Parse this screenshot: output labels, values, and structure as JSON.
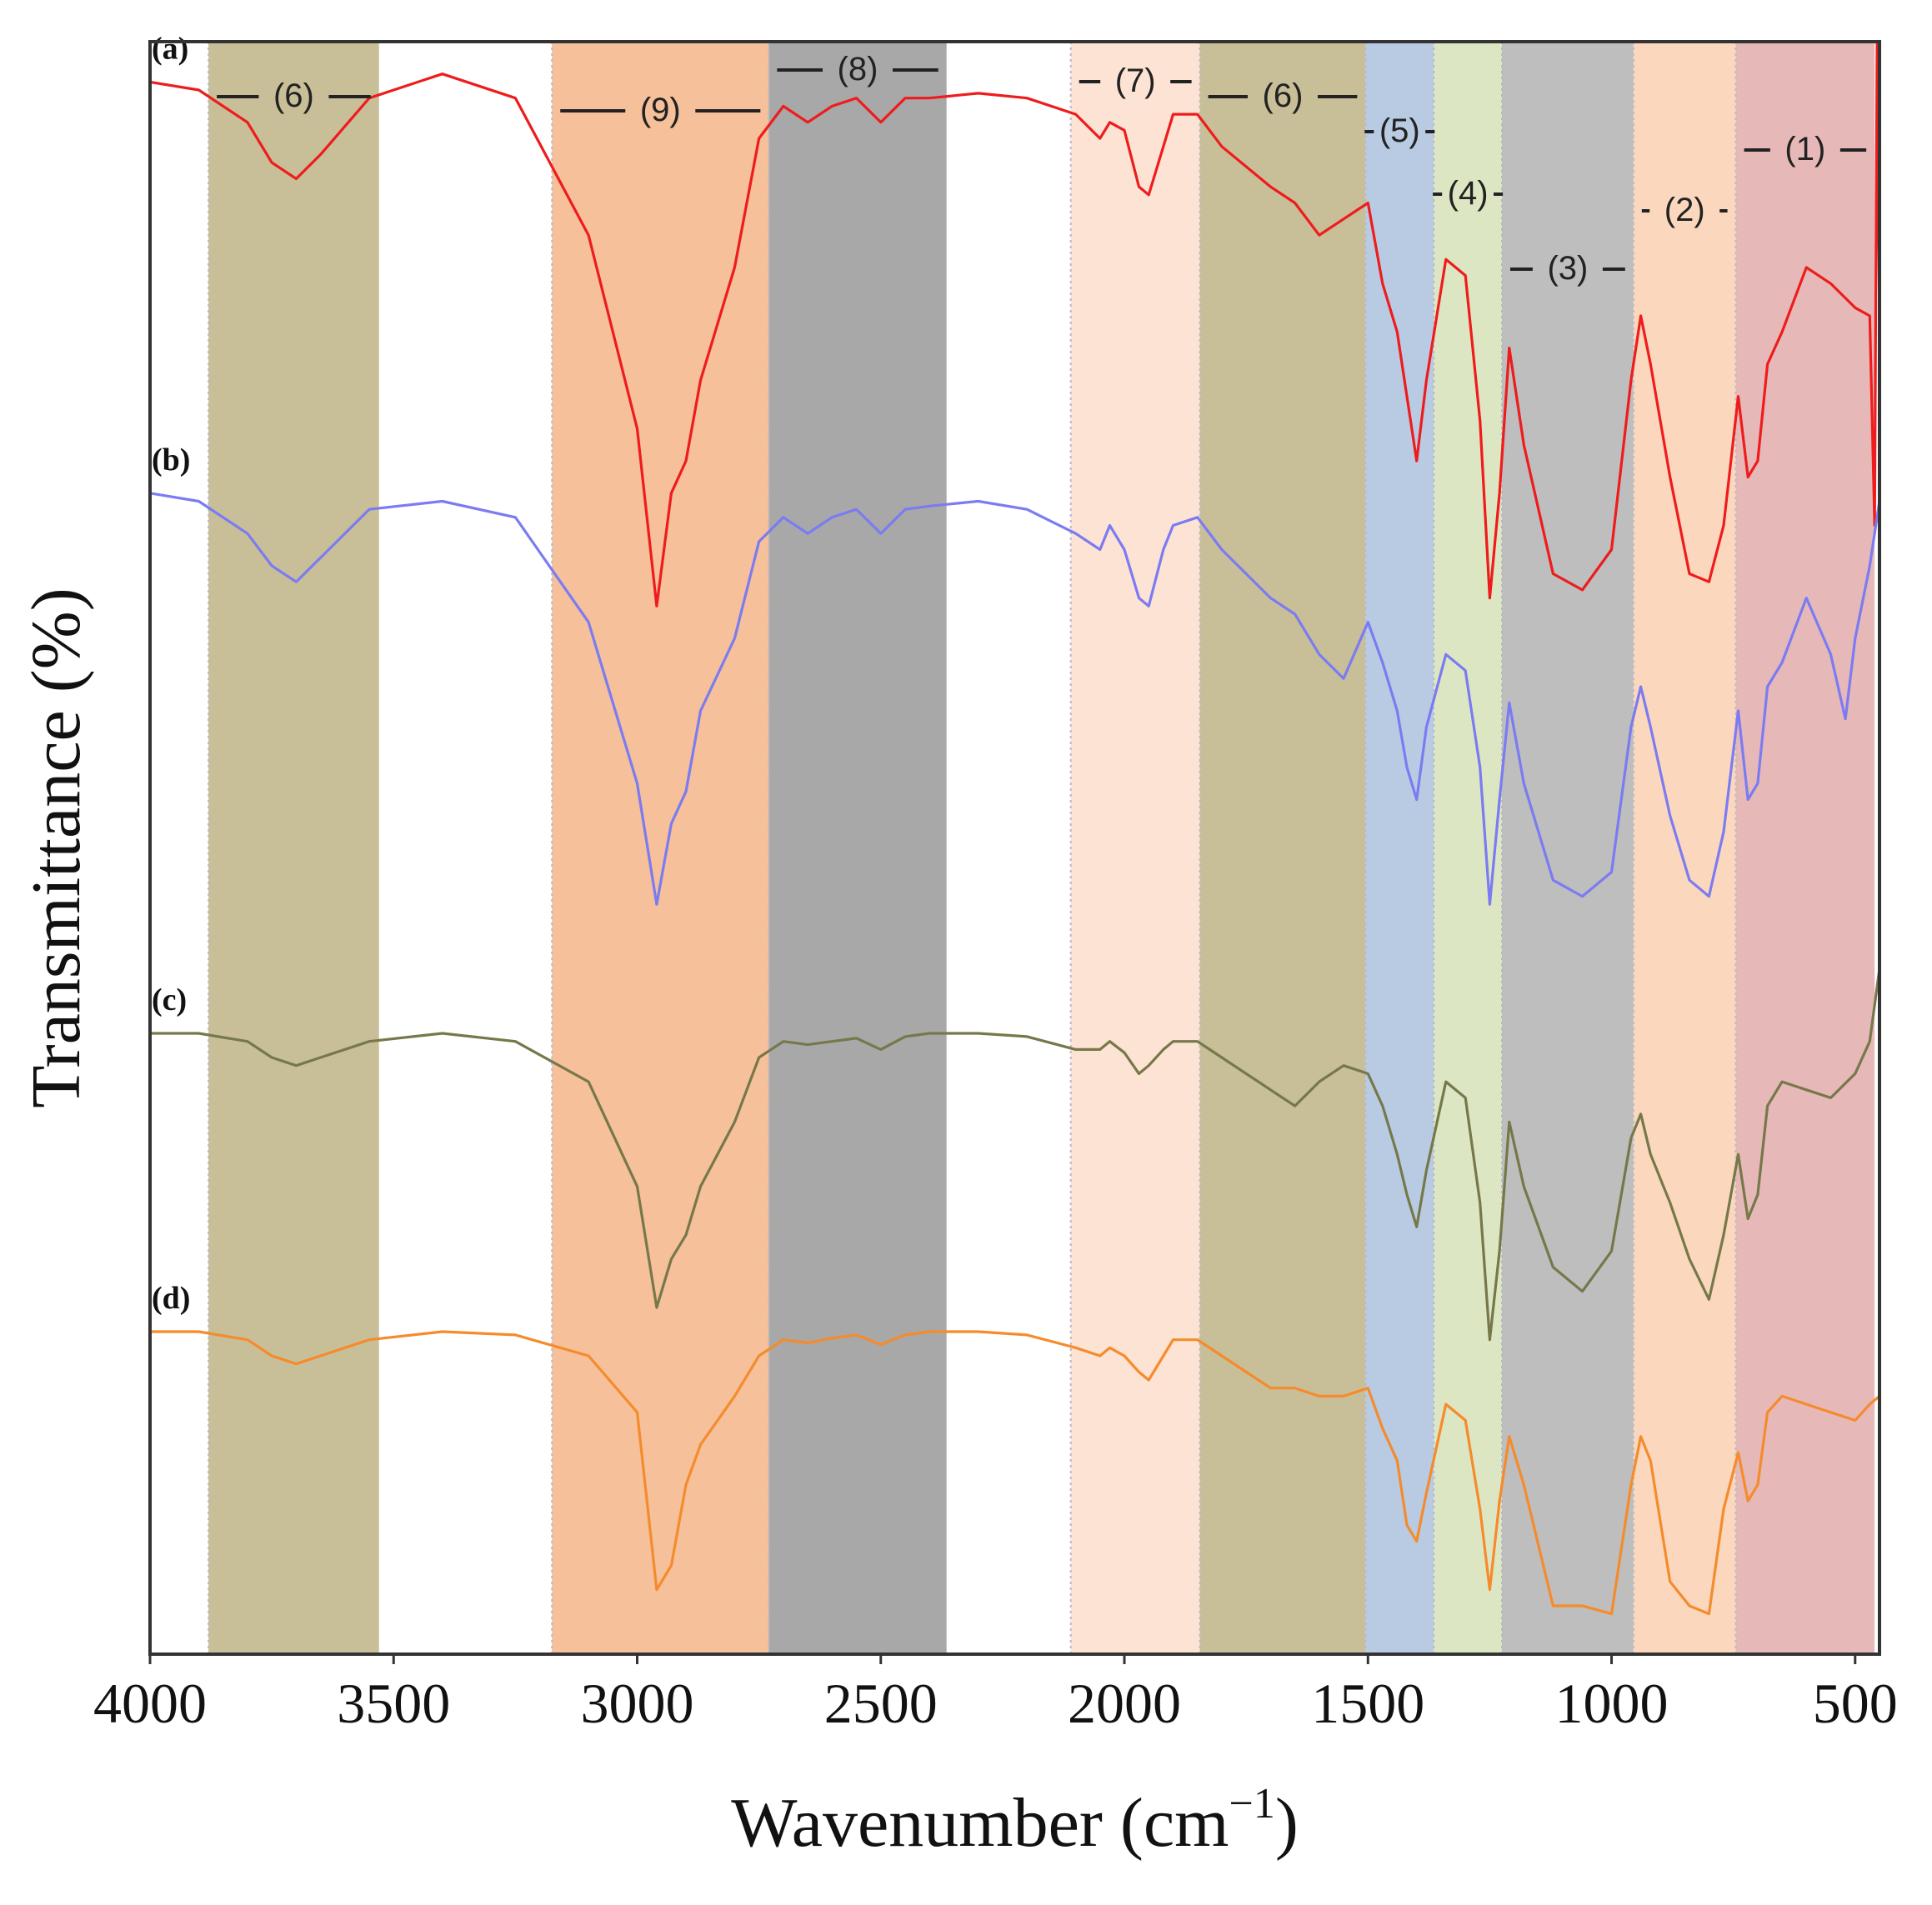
{
  "chart_data": {
    "type": "line",
    "title": "",
    "xlabel": "Wavenumber (cm",
    "xlabel_sup": "−1",
    "xlabel_close": ")",
    "ylabel": "Transmittance (%)",
    "xlim": [
      4000,
      450
    ],
    "x_reversed": true,
    "xticks": [
      4000,
      3500,
      3000,
      2500,
      2000,
      1500,
      1000,
      500
    ],
    "xtick_labels": [
      "4000",
      "3500",
      "3000",
      "2500",
      "2000",
      "1500",
      "1000",
      "500"
    ],
    "ylim": [
      0,
      100
    ],
    "yticks_shown": false,
    "bands": [
      {
        "label": "(6)",
        "from": 3880,
        "to": 3530,
        "color": "#c8bf98"
      },
      {
        "label": "(9)",
        "from": 3175,
        "to": 2730,
        "color": "#f5c09a"
      },
      {
        "label": "(8)",
        "from": 2730,
        "to": 2365,
        "color": "#a8a8a8"
      },
      {
        "label": "(7)",
        "from": 2110,
        "to": 1845,
        "color": "#fde3d3"
      },
      {
        "label": "(6)",
        "from": 1845,
        "to": 1505,
        "color": "#c8bf98"
      },
      {
        "label": "(5)",
        "from": 1505,
        "to": 1365,
        "color": "#b9cbe3"
      },
      {
        "label": "(4)",
        "from": 1365,
        "to": 1225,
        "color": "#dde6c2"
      },
      {
        "label": "(3)",
        "from": 1225,
        "to": 955,
        "color": "#bebebe"
      },
      {
        "label": "(2)",
        "from": 955,
        "to": 745,
        "color": "#fbd8bd"
      },
      {
        "label": "(1)",
        "from": 745,
        "to": 460,
        "color": "#e6b9b8"
      }
    ],
    "series": [
      {
        "name": "(a)",
        "color": "#ee1c1c",
        "x": [
          4000,
          3900,
          3800,
          3750,
          3700,
          3650,
          3550,
          3400,
          3250,
          3100,
          3000,
          2960,
          2930,
          2900,
          2870,
          2800,
          2750,
          2700,
          2650,
          2600,
          2550,
          2500,
          2450,
          2400,
          2300,
          2200,
          2100,
          2050,
          2030,
          2000,
          1970,
          1950,
          1920,
          1900,
          1850,
          1800,
          1700,
          1650,
          1600,
          1550,
          1500,
          1470,
          1440,
          1420,
          1400,
          1380,
          1340,
          1300,
          1270,
          1250,
          1230,
          1210,
          1180,
          1120,
          1060,
          1000,
          960,
          940,
          920,
          880,
          840,
          800,
          770,
          740,
          720,
          700,
          680,
          650,
          600,
          550,
          500,
          470,
          460,
          455,
          450
        ],
        "y": [
          97.5,
          97.0,
          95.0,
          92.5,
          91.5,
          93.0,
          96.5,
          98.0,
          96.5,
          88.0,
          76.0,
          65.0,
          72.0,
          74.0,
          79.0,
          86.0,
          94.0,
          96.0,
          95.0,
          96.0,
          96.5,
          95.0,
          96.5,
          96.5,
          96.8,
          96.5,
          95.5,
          94.0,
          95.0,
          94.5,
          91.0,
          90.5,
          93.5,
          95.5,
          95.5,
          93.5,
          91.0,
          90.0,
          88.0,
          89.0,
          90.0,
          85.0,
          82.0,
          78.0,
          74.0,
          79.0,
          86.5,
          85.5,
          76.5,
          65.5,
          72.0,
          81.0,
          75.0,
          67.0,
          66.0,
          68.5,
          79.0,
          83.0,
          80.0,
          73.0,
          67.0,
          66.5,
          70.0,
          78.0,
          73.0,
          74.0,
          80.0,
          82.0,
          86.0,
          85.0,
          83.5,
          83.0,
          70.0,
          100.0,
          82.0
        ]
      },
      {
        "name": "(b)",
        "color": "#7b7bf2",
        "x": [
          4000,
          3900,
          3800,
          3750,
          3700,
          3650,
          3550,
          3400,
          3250,
          3100,
          3000,
          2960,
          2930,
          2900,
          2870,
          2800,
          2750,
          2700,
          2650,
          2600,
          2550,
          2500,
          2450,
          2400,
          2300,
          2200,
          2100,
          2050,
          2030,
          2000,
          1970,
          1950,
          1920,
          1900,
          1850,
          1800,
          1700,
          1650,
          1600,
          1550,
          1500,
          1470,
          1440,
          1420,
          1400,
          1380,
          1340,
          1300,
          1270,
          1250,
          1230,
          1210,
          1180,
          1120,
          1060,
          1000,
          960,
          940,
          920,
          880,
          840,
          800,
          770,
          740,
          720,
          700,
          680,
          650,
          600,
          550,
          520,
          500,
          470,
          450
        ],
        "y": [
          72.0,
          71.5,
          69.5,
          67.5,
          66.5,
          68.0,
          71.0,
          71.5,
          70.5,
          64.0,
          54.0,
          46.5,
          51.5,
          53.5,
          58.5,
          63.0,
          69.0,
          70.5,
          69.5,
          70.5,
          71.0,
          69.5,
          71.0,
          71.2,
          71.5,
          71.0,
          69.5,
          68.5,
          70.0,
          68.5,
          65.5,
          65.0,
          68.5,
          70.0,
          70.5,
          68.5,
          65.5,
          64.5,
          62.0,
          60.5,
          64.0,
          61.5,
          58.5,
          55.0,
          53.0,
          57.5,
          62.0,
          61.0,
          55.0,
          46.5,
          53.0,
          59.0,
          54.0,
          48.0,
          47.0,
          48.5,
          57.5,
          60.0,
          57.5,
          52.0,
          48.0,
          47.0,
          51.0,
          58.5,
          53.0,
          54.0,
          60.0,
          61.5,
          65.5,
          62.0,
          58.0,
          63.0,
          67.5,
          71.5
        ]
      },
      {
        "name": "(c)",
        "color": "#77784a",
        "x": [
          4000,
          3900,
          3800,
          3750,
          3700,
          3650,
          3550,
          3400,
          3250,
          3100,
          3000,
          2960,
          2930,
          2900,
          2870,
          2800,
          2750,
          2700,
          2650,
          2600,
          2550,
          2500,
          2450,
          2400,
          2300,
          2200,
          2100,
          2050,
          2030,
          2000,
          1970,
          1950,
          1920,
          1900,
          1850,
          1800,
          1700,
          1650,
          1600,
          1550,
          1500,
          1470,
          1440,
          1420,
          1400,
          1380,
          1340,
          1300,
          1270,
          1250,
          1230,
          1210,
          1180,
          1120,
          1060,
          1000,
          960,
          940,
          920,
          880,
          840,
          800,
          770,
          740,
          720,
          700,
          680,
          650,
          600,
          550,
          500,
          470,
          450
        ],
        "y": [
          38.5,
          38.5,
          38.0,
          37.0,
          36.5,
          37.0,
          38.0,
          38.5,
          38.0,
          35.5,
          29.0,
          21.5,
          24.5,
          26.0,
          29.0,
          33.0,
          37.0,
          38.0,
          37.8,
          38.0,
          38.2,
          37.5,
          38.3,
          38.5,
          38.5,
          38.3,
          37.5,
          37.5,
          38.0,
          37.3,
          36.0,
          36.5,
          37.5,
          38.0,
          38.0,
          37.0,
          35.0,
          34.0,
          35.5,
          36.5,
          36.0,
          34.0,
          31.0,
          28.5,
          26.5,
          30.0,
          35.5,
          34.5,
          28.0,
          19.5,
          25.0,
          33.0,
          29.0,
          24.0,
          22.5,
          25.0,
          32.0,
          33.5,
          31.0,
          28.0,
          24.5,
          22.0,
          26.0,
          31.0,
          27.0,
          28.5,
          34.0,
          35.5,
          35.0,
          34.5,
          36.0,
          38.0,
          42.5
        ]
      },
      {
        "name": "(d)",
        "color": "#f58b2c",
        "x": [
          4000,
          3900,
          3800,
          3750,
          3700,
          3650,
          3550,
          3400,
          3250,
          3100,
          3000,
          2960,
          2930,
          2900,
          2870,
          2800,
          2750,
          2700,
          2650,
          2600,
          2550,
          2500,
          2450,
          2400,
          2300,
          2200,
          2100,
          2050,
          2030,
          2000,
          1970,
          1950,
          1920,
          1900,
          1850,
          1800,
          1700,
          1650,
          1600,
          1550,
          1500,
          1470,
          1440,
          1420,
          1400,
          1380,
          1340,
          1300,
          1270,
          1250,
          1230,
          1210,
          1180,
          1120,
          1060,
          1000,
          960,
          940,
          920,
          880,
          840,
          800,
          770,
          740,
          720,
          700,
          680,
          650,
          600,
          550,
          500,
          470,
          450
        ],
        "y": [
          20.0,
          20.0,
          19.5,
          18.5,
          18.0,
          18.5,
          19.5,
          20.0,
          19.8,
          18.5,
          15.0,
          4.0,
          5.5,
          10.5,
          13.0,
          16.0,
          18.5,
          19.5,
          19.3,
          19.6,
          19.8,
          19.2,
          19.8,
          20.0,
          20.0,
          19.8,
          19.0,
          18.5,
          19.0,
          18.5,
          17.5,
          17.0,
          18.5,
          19.5,
          19.5,
          18.5,
          16.5,
          16.5,
          16.0,
          16.0,
          16.5,
          14.0,
          12.0,
          8.0,
          7.0,
          10.0,
          15.5,
          14.5,
          9.0,
          4.0,
          9.5,
          13.5,
          10.5,
          3.0,
          3.0,
          2.5,
          10.5,
          13.5,
          12.0,
          4.5,
          3.0,
          2.5,
          9.0,
          12.5,
          9.5,
          10.5,
          15.0,
          16.0,
          15.5,
          15.0,
          14.5,
          15.5,
          16.0
        ]
      }
    ]
  }
}
